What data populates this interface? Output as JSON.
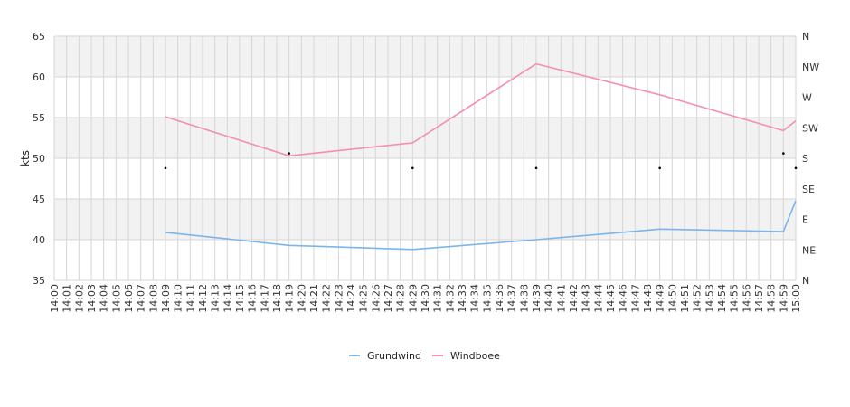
{
  "chart_data": {
    "type": "line",
    "title": "",
    "ylabel": "kts",
    "ylim": [
      35,
      65
    ],
    "y_ticks": [
      "35",
      "40",
      "45",
      "50",
      "55",
      "60",
      "65"
    ],
    "y2_ticks": [
      "N",
      "NE",
      "E",
      "SE",
      "S",
      "SW",
      "W",
      "NW",
      "N"
    ],
    "x_start_minute": 0,
    "x_end_minute": 60,
    "x_tick_labels": [
      "14:00",
      "14:01",
      "14:02",
      "14:03",
      "14:04",
      "14:05",
      "14:06",
      "14:07",
      "14:08",
      "14:09",
      "14:10",
      "14:11",
      "14:12",
      "14:13",
      "14:14",
      "14:15",
      "14:16",
      "14:17",
      "14:18",
      "14:19",
      "14:20",
      "14:21",
      "14:22",
      "14:23",
      "14:24",
      "14:25",
      "14:26",
      "14:27",
      "14:28",
      "14:29",
      "14:30",
      "14:31",
      "14:32",
      "14:33",
      "14:34",
      "14:35",
      "14:36",
      "14:37",
      "14:38",
      "14:39",
      "14:40",
      "14:41",
      "14:42",
      "14:43",
      "14:44",
      "14:45",
      "14:46",
      "14:47",
      "14:48",
      "14:49",
      "14:50",
      "14:51",
      "14:52",
      "14:53",
      "14:54",
      "14:55",
      "14:56",
      "14:57",
      "14:58",
      "14:59",
      "15:00"
    ],
    "grid": true,
    "legend_position": "bottom-center",
    "series": [
      {
        "name": "Grundwind",
        "color": "#7cb5ec",
        "points": [
          [
            9,
            40.9
          ],
          [
            19,
            39.3
          ],
          [
            29,
            38.8
          ],
          [
            39,
            40.0
          ],
          [
            49,
            41.3
          ],
          [
            59,
            41.0
          ],
          [
            60,
            44.8
          ]
        ]
      },
      {
        "name": "Windboee",
        "color": "#f48fb1",
        "points": [
          [
            9,
            55.1
          ],
          [
            19,
            50.3
          ],
          [
            29,
            51.9
          ],
          [
            39,
            61.6
          ],
          [
            49,
            57.8
          ],
          [
            59,
            53.4
          ],
          [
            60,
            54.6
          ]
        ]
      }
    ],
    "direction_markers": {
      "points": [
        [
          9,
          48.8
        ],
        [
          19,
          50.6
        ],
        [
          29,
          48.8
        ],
        [
          39,
          48.8
        ],
        [
          49,
          48.8
        ],
        [
          59,
          50.6
        ],
        [
          60,
          48.8
        ]
      ]
    }
  }
}
